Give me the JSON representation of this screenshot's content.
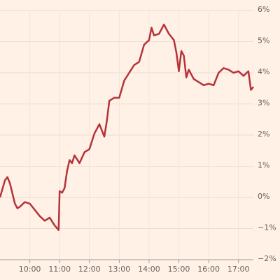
{
  "chart_data": {
    "type": "line",
    "x": [
      "09:00",
      "09:10",
      "09:15",
      "09:20",
      "09:30",
      "09:35",
      "09:40",
      "09:50",
      "10:00",
      "10:10",
      "10:20",
      "10:30",
      "10:40",
      "10:50",
      "10:58",
      "11:00",
      "11:05",
      "11:10",
      "11:15",
      "11:20",
      "11:25",
      "11:30",
      "11:40",
      "11:50",
      "12:00",
      "12:10",
      "12:20",
      "12:30",
      "12:35",
      "12:40",
      "12:50",
      "13:00",
      "13:10",
      "13:20",
      "13:30",
      "13:40",
      "13:50",
      "14:00",
      "14:05",
      "14:10",
      "14:20",
      "14:30",
      "14:40",
      "14:50",
      "14:55",
      "15:00",
      "15:05",
      "15:10",
      "15:15",
      "15:20",
      "15:30",
      "15:40",
      "15:50",
      "16:00",
      "16:10",
      "16:20",
      "16:30",
      "16:40",
      "16:50",
      "17:00",
      "17:10",
      "17:20",
      "17:25",
      "17:30"
    ],
    "series": [
      {
        "color": "#b5333a",
        "values": [
          0.0,
          0.55,
          0.65,
          0.45,
          -0.2,
          -0.35,
          -0.3,
          -0.15,
          -0.2,
          -0.4,
          -0.6,
          -0.75,
          -0.65,
          -0.9,
          -1.05,
          0.2,
          0.15,
          0.3,
          0.85,
          1.2,
          1.1,
          1.35,
          1.1,
          1.45,
          1.55,
          2.05,
          2.35,
          1.95,
          2.45,
          3.1,
          3.2,
          3.2,
          3.75,
          4.0,
          4.25,
          4.35,
          4.9,
          5.05,
          5.45,
          5.2,
          5.25,
          5.55,
          5.25,
          5.05,
          4.65,
          4.05,
          4.7,
          4.55,
          3.85,
          4.1,
          3.8,
          3.7,
          3.6,
          3.65,
          3.6,
          4.0,
          4.15,
          4.1,
          4.0,
          4.05,
          3.9,
          4.05,
          3.45,
          3.55
        ]
      }
    ],
    "xlim": [
      "09:00",
      "17:30"
    ],
    "xticks": [
      "10:00",
      "11:00",
      "12:00",
      "13:00",
      "14:00",
      "15:00",
      "16:00",
      "17:00"
    ],
    "ylim": [
      -2,
      6
    ],
    "yticks": [
      {
        "value": 6,
        "label": "6%"
      },
      {
        "value": 5,
        "label": "5%"
      },
      {
        "value": 4,
        "label": "4%"
      },
      {
        "value": 3,
        "label": "3%"
      },
      {
        "value": 2,
        "label": "2%"
      },
      {
        "value": 1,
        "label": "1%"
      },
      {
        "value": 0,
        "label": "0%"
      },
      {
        "value": -1,
        "label": "−1%"
      },
      {
        "value": -2,
        "label": "−2%"
      }
    ],
    "grid": true
  }
}
